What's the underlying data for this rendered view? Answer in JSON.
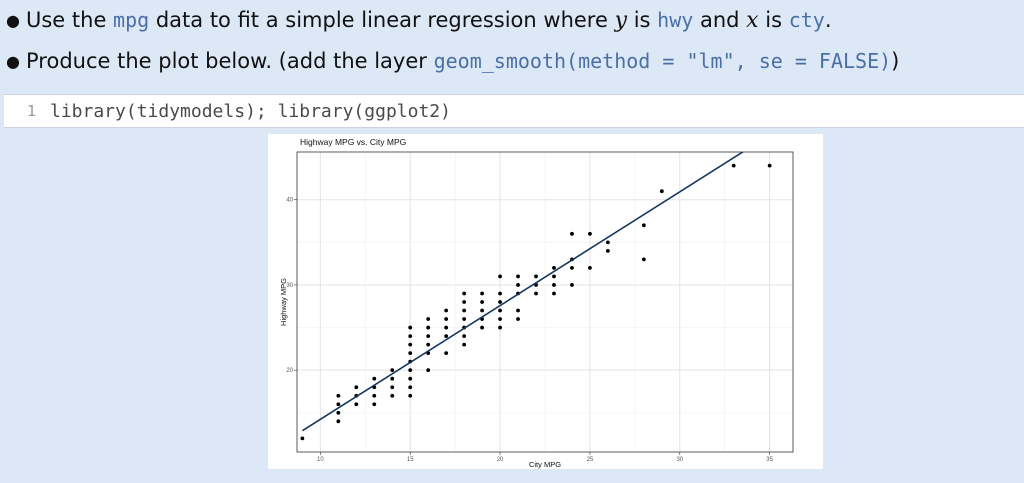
{
  "bullets": [
    {
      "parts": [
        {
          "t": "text",
          "v": "Use the "
        },
        {
          "t": "code",
          "v": "mpg"
        },
        {
          "t": "text",
          "v": " data to fit a simple linear regression where "
        },
        {
          "t": "math",
          "v": "y"
        },
        {
          "t": "text",
          "v": " is "
        },
        {
          "t": "code",
          "v": "hwy"
        },
        {
          "t": "text",
          "v": " and "
        },
        {
          "t": "math",
          "v": "x"
        },
        {
          "t": "text",
          "v": " is "
        },
        {
          "t": "code",
          "v": "cty"
        },
        {
          "t": "text",
          "v": "."
        }
      ]
    },
    {
      "parts": [
        {
          "t": "text",
          "v": "Produce the plot below. (add the layer "
        },
        {
          "t": "code",
          "v": "geom_smooth(method = \"lm\", se = FALSE)"
        },
        {
          "t": "text",
          "v": ")"
        }
      ]
    }
  ],
  "code_block": {
    "line_number": "1",
    "source": "library(tidymodels); library(ggplot2)"
  },
  "chart_data": {
    "type": "scatter",
    "title": "Highway MPG vs. City MPG",
    "xlabel": "City MPG",
    "ylabel": "Highway MPG",
    "xlim": [
      8.7,
      36.3
    ],
    "ylim": [
      10.4,
      45.6
    ],
    "x_ticks": [
      10,
      15,
      20,
      25,
      30,
      35
    ],
    "y_ticks": [
      20,
      30,
      40
    ],
    "x_tick_labels": [
      "10",
      "15",
      "20",
      "25",
      "30",
      "35"
    ],
    "y_tick_labels": [
      "20",
      "30",
      "40"
    ],
    "grid": true,
    "regression_line": {
      "x": [
        9,
        35
      ],
      "y": [
        12.9,
        47.6
      ]
    },
    "points": [
      [
        9,
        12
      ],
      [
        11,
        14
      ],
      [
        11,
        15
      ],
      [
        11,
        16
      ],
      [
        11,
        17
      ],
      [
        12,
        16
      ],
      [
        12,
        17
      ],
      [
        12,
        18
      ],
      [
        13,
        16
      ],
      [
        13,
        17
      ],
      [
        13,
        18
      ],
      [
        13,
        19
      ],
      [
        14,
        17
      ],
      [
        14,
        18
      ],
      [
        14,
        19
      ],
      [
        14,
        20
      ],
      [
        15,
        17
      ],
      [
        15,
        18
      ],
      [
        15,
        19
      ],
      [
        15,
        20
      ],
      [
        15,
        21
      ],
      [
        15,
        22
      ],
      [
        15,
        23
      ],
      [
        15,
        24
      ],
      [
        15,
        25
      ],
      [
        16,
        20
      ],
      [
        16,
        22
      ],
      [
        16,
        23
      ],
      [
        16,
        24
      ],
      [
        16,
        25
      ],
      [
        16,
        26
      ],
      [
        17,
        22
      ],
      [
        17,
        24
      ],
      [
        17,
        25
      ],
      [
        17,
        26
      ],
      [
        17,
        27
      ],
      [
        18,
        23
      ],
      [
        18,
        24
      ],
      [
        18,
        25
      ],
      [
        18,
        26
      ],
      [
        18,
        27
      ],
      [
        18,
        28
      ],
      [
        18,
        29
      ],
      [
        19,
        25
      ],
      [
        19,
        26
      ],
      [
        19,
        27
      ],
      [
        19,
        28
      ],
      [
        19,
        29
      ],
      [
        20,
        25
      ],
      [
        20,
        26
      ],
      [
        20,
        27
      ],
      [
        20,
        28
      ],
      [
        20,
        29
      ],
      [
        20,
        31
      ],
      [
        21,
        26
      ],
      [
        21,
        27
      ],
      [
        21,
        29
      ],
      [
        21,
        30
      ],
      [
        21,
        31
      ],
      [
        22,
        29
      ],
      [
        22,
        30
      ],
      [
        22,
        31
      ],
      [
        23,
        29
      ],
      [
        23,
        30
      ],
      [
        23,
        31
      ],
      [
        23,
        32
      ],
      [
        24,
        30
      ],
      [
        24,
        32
      ],
      [
        24,
        33
      ],
      [
        24,
        36
      ],
      [
        25,
        32
      ],
      [
        25,
        36
      ],
      [
        26,
        34
      ],
      [
        26,
        35
      ],
      [
        28,
        33
      ],
      [
        28,
        37
      ],
      [
        29,
        41
      ],
      [
        33,
        44
      ],
      [
        35,
        44
      ]
    ]
  }
}
